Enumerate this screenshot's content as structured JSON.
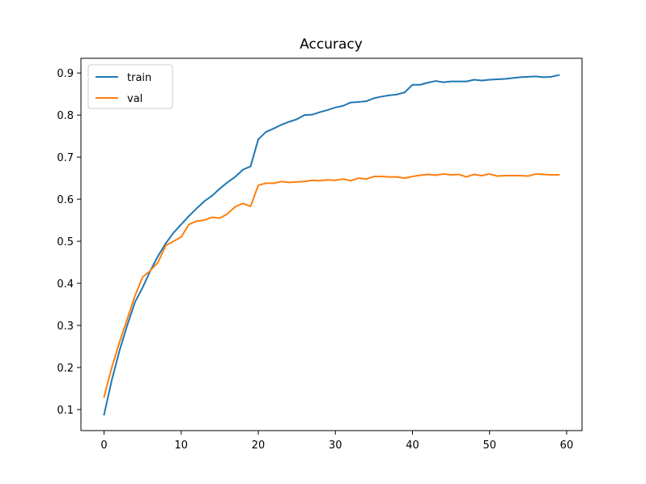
{
  "chart_data": {
    "type": "line",
    "title": "Accuracy",
    "xlabel": "",
    "ylabel": "",
    "xlim": [
      -3,
      62
    ],
    "ylim": [
      0.05,
      0.935
    ],
    "x_ticks": [
      0,
      10,
      20,
      30,
      40,
      50,
      60
    ],
    "y_ticks": [
      0.1,
      0.2,
      0.3,
      0.4,
      0.5,
      0.6,
      0.7,
      0.8,
      0.9
    ],
    "x_tick_labels": [
      "0",
      "10",
      "20",
      "30",
      "40",
      "50",
      "60"
    ],
    "y_tick_labels": [
      "0.1",
      "0.2",
      "0.3",
      "0.4",
      "0.5",
      "0.6",
      "0.7",
      "0.8",
      "0.9"
    ],
    "grid": false,
    "legend_position": "upper-left",
    "x": [
      0,
      1,
      2,
      3,
      4,
      5,
      6,
      7,
      8,
      9,
      10,
      11,
      12,
      13,
      14,
      15,
      16,
      17,
      18,
      19,
      20,
      21,
      22,
      23,
      24,
      25,
      26,
      27,
      28,
      29,
      30,
      31,
      32,
      33,
      34,
      35,
      36,
      37,
      38,
      39,
      40,
      41,
      42,
      43,
      44,
      45,
      46,
      47,
      48,
      49,
      50,
      51,
      52,
      53,
      54,
      55,
      56,
      57,
      58,
      59
    ],
    "series": [
      {
        "name": "train",
        "color": "#1f77b4",
        "values": [
          0.088,
          0.17,
          0.24,
          0.3,
          0.355,
          0.39,
          0.43,
          0.465,
          0.495,
          0.52,
          0.54,
          0.56,
          0.578,
          0.595,
          0.608,
          0.625,
          0.64,
          0.653,
          0.67,
          0.678,
          0.742,
          0.76,
          0.768,
          0.777,
          0.784,
          0.79,
          0.8,
          0.801,
          0.807,
          0.812,
          0.818,
          0.822,
          0.83,
          0.831,
          0.833,
          0.84,
          0.844,
          0.847,
          0.849,
          0.854,
          0.872,
          0.872,
          0.877,
          0.881,
          0.878,
          0.88,
          0.88,
          0.88,
          0.884,
          0.882,
          0.884,
          0.885,
          0.886,
          0.888,
          0.89,
          0.891,
          0.892,
          0.89,
          0.891,
          0.895
        ]
      },
      {
        "name": "val",
        "color": "#ff7f0e",
        "values": [
          0.13,
          0.2,
          0.26,
          0.315,
          0.37,
          0.415,
          0.43,
          0.45,
          0.49,
          0.5,
          0.51,
          0.54,
          0.548,
          0.55,
          0.557,
          0.555,
          0.565,
          0.582,
          0.59,
          0.583,
          0.633,
          0.638,
          0.638,
          0.642,
          0.64,
          0.641,
          0.642,
          0.645,
          0.644,
          0.646,
          0.645,
          0.648,
          0.644,
          0.65,
          0.648,
          0.654,
          0.654,
          0.653,
          0.653,
          0.65,
          0.654,
          0.657,
          0.659,
          0.657,
          0.66,
          0.658,
          0.659,
          0.653,
          0.659,
          0.656,
          0.66,
          0.655,
          0.656,
          0.656,
          0.656,
          0.655,
          0.66,
          0.659,
          0.658,
          0.658
        ]
      }
    ]
  }
}
